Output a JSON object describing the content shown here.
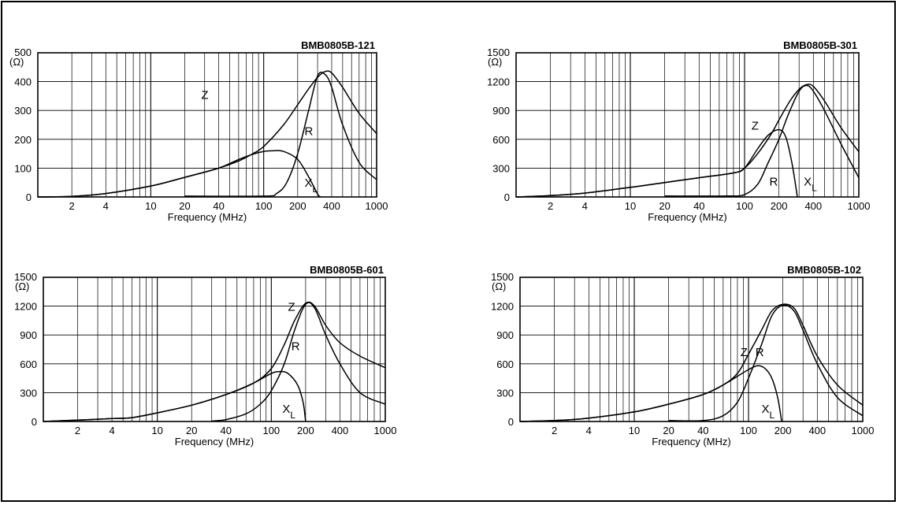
{
  "chart_data": [
    {
      "type": "line",
      "title": "BMB0805B-121",
      "xlabel": "Frequency (MHz)",
      "yunit": "(Ω)",
      "xscale": "log",
      "xlim": [
        1,
        1000
      ],
      "ylim": [
        0,
        500
      ],
      "xticks": [
        2,
        4,
        10,
        20,
        40,
        100,
        200,
        400,
        1000
      ],
      "yticks": [
        0,
        100,
        200,
        300,
        400,
        500
      ],
      "grid": true,
      "series": [
        {
          "name": "Z",
          "points": [
            [
              1,
              0
            ],
            [
              2,
              2
            ],
            [
              4,
              12
            ],
            [
              10,
              38
            ],
            [
              20,
              68
            ],
            [
              40,
              100
            ],
            [
              60,
              125
            ],
            [
              80,
              150
            ],
            [
              100,
              175
            ],
            [
              150,
              250
            ],
            [
              200,
              320
            ],
            [
              250,
              375
            ],
            [
              300,
              415
            ],
            [
              350,
              435
            ],
            [
              400,
              430
            ],
            [
              500,
              380
            ],
            [
              700,
              290
            ],
            [
              1000,
              220
            ]
          ]
        },
        {
          "name": "R",
          "points": [
            [
              20,
              3
            ],
            [
              100,
              3
            ],
            [
              130,
              12
            ],
            [
              160,
              50
            ],
            [
              200,
              150
            ],
            [
              250,
              300
            ],
            [
              300,
              420
            ],
            [
              350,
              425
            ],
            [
              400,
              380
            ],
            [
              500,
              250
            ],
            [
              700,
              120
            ],
            [
              1000,
              60
            ]
          ]
        },
        {
          "name": "XL",
          "points": [
            [
              1,
              0
            ],
            [
              2,
              2
            ],
            [
              4,
              12
            ],
            [
              10,
              38
            ],
            [
              20,
              68
            ],
            [
              40,
              100
            ],
            [
              60,
              130
            ],
            [
              80,
              148
            ],
            [
              100,
              158
            ],
            [
              120,
              160
            ],
            [
              150,
              158
            ],
            [
              200,
              130
            ],
            [
              250,
              70
            ],
            [
              300,
              10
            ],
            [
              320,
              0
            ]
          ]
        }
      ],
      "labels": {
        "Z": "Z",
        "R": "R",
        "XL": "X",
        "XL_sub": "L"
      }
    },
    {
      "type": "line",
      "title": "BMB0805B-301",
      "xlabel": "Frequency (MHz)",
      "yunit": "(Ω)",
      "xscale": "log",
      "xlim": [
        1,
        1000
      ],
      "ylim": [
        0,
        1500
      ],
      "xticks": [
        2,
        4,
        10,
        20,
        40,
        100,
        200,
        400,
        1000
      ],
      "yticks": [
        0,
        300,
        600,
        900,
        1200,
        1500
      ],
      "grid": true,
      "series": [
        {
          "name": "Z",
          "points": [
            [
              1,
              0
            ],
            [
              2,
              15
            ],
            [
              4,
              40
            ],
            [
              10,
              100
            ],
            [
              20,
              150
            ],
            [
              40,
              200
            ],
            [
              80,
              250
            ],
            [
              100,
              300
            ],
            [
              130,
              450
            ],
            [
              170,
              650
            ],
            [
              200,
              800
            ],
            [
              250,
              1000
            ],
            [
              300,
              1120
            ],
            [
              350,
              1170
            ],
            [
              400,
              1150
            ],
            [
              500,
              1000
            ],
            [
              700,
              720
            ],
            [
              1000,
              470
            ]
          ]
        },
        {
          "name": "R",
          "points": [
            [
              20,
              10
            ],
            [
              70,
              10
            ],
            [
              100,
              25
            ],
            [
              130,
              130
            ],
            [
              160,
              350
            ],
            [
              200,
              600
            ],
            [
              240,
              850
            ],
            [
              300,
              1100
            ],
            [
              350,
              1160
            ],
            [
              400,
              1100
            ],
            [
              500,
              900
            ],
            [
              700,
              550
            ],
            [
              1000,
              200
            ]
          ]
        },
        {
          "name": "XL",
          "points": [
            [
              1,
              0
            ],
            [
              2,
              15
            ],
            [
              4,
              40
            ],
            [
              10,
              100
            ],
            [
              20,
              150
            ],
            [
              40,
              200
            ],
            [
              80,
              250
            ],
            [
              100,
              300
            ],
            [
              130,
              500
            ],
            [
              160,
              640
            ],
            [
              200,
              700
            ],
            [
              230,
              620
            ],
            [
              260,
              350
            ],
            [
              290,
              0
            ]
          ]
        }
      ],
      "labels": {
        "Z": "Z",
        "R": "R",
        "XL": "X",
        "XL_sub": "L"
      }
    },
    {
      "type": "line",
      "title": "BMB0805B-601",
      "xlabel": "Frequency (MHz)",
      "yunit": "(Ω)",
      "xscale": "log",
      "xlim": [
        1,
        1000
      ],
      "ylim": [
        0,
        1500
      ],
      "xticks": [
        2,
        4,
        10,
        20,
        40,
        100,
        200,
        400,
        1000
      ],
      "yticks": [
        0,
        300,
        600,
        900,
        1200,
        1500
      ],
      "grid": true,
      "series": [
        {
          "name": "Z",
          "points": [
            [
              1,
              0
            ],
            [
              2,
              15
            ],
            [
              4,
              30
            ],
            [
              6,
              40
            ],
            [
              10,
              90
            ],
            [
              20,
              170
            ],
            [
              40,
              280
            ],
            [
              70,
              400
            ],
            [
              100,
              550
            ],
            [
              130,
              800
            ],
            [
              160,
              1050
            ],
            [
              200,
              1230
            ],
            [
              240,
              1200
            ],
            [
              300,
              1000
            ],
            [
              400,
              820
            ],
            [
              600,
              680
            ],
            [
              1000,
              560
            ]
          ]
        },
        {
          "name": "R",
          "points": [
            [
              30,
              5
            ],
            [
              40,
              20
            ],
            [
              60,
              80
            ],
            [
              80,
              180
            ],
            [
              100,
              320
            ],
            [
              130,
              600
            ],
            [
              160,
              950
            ],
            [
              200,
              1220
            ],
            [
              240,
              1180
            ],
            [
              300,
              900
            ],
            [
              400,
              600
            ],
            [
              600,
              300
            ],
            [
              1000,
              180
            ]
          ]
        },
        {
          "name": "XL",
          "points": [
            [
              1,
              0
            ],
            [
              2,
              15
            ],
            [
              4,
              30
            ],
            [
              6,
              40
            ],
            [
              10,
              90
            ],
            [
              20,
              170
            ],
            [
              40,
              280
            ],
            [
              70,
              400
            ],
            [
              100,
              500
            ],
            [
              120,
              520
            ],
            [
              140,
              500
            ],
            [
              170,
              380
            ],
            [
              190,
              200
            ],
            [
              200,
              0
            ]
          ]
        }
      ],
      "labels": {
        "Z": "Z",
        "R": "R",
        "XL": "X",
        "XL_sub": "L"
      }
    },
    {
      "type": "line",
      "title": "BMB0805B-102",
      "xlabel": "Frequency (MHz)",
      "yunit": "(Ω)",
      "xscale": "log",
      "xlim": [
        1,
        1000
      ],
      "ylim": [
        0,
        1500
      ],
      "xticks": [
        2,
        4,
        10,
        20,
        40,
        100,
        200,
        400,
        1000
      ],
      "yticks": [
        0,
        300,
        600,
        900,
        1200,
        1500
      ],
      "grid": true,
      "series": [
        {
          "name": "Z",
          "points": [
            [
              1,
              0
            ],
            [
              2,
              10
            ],
            [
              4,
              35
            ],
            [
              10,
              100
            ],
            [
              20,
              180
            ],
            [
              40,
              280
            ],
            [
              60,
              380
            ],
            [
              80,
              500
            ],
            [
              100,
              700
            ],
            [
              130,
              950
            ],
            [
              160,
              1150
            ],
            [
              200,
              1220
            ],
            [
              250,
              1180
            ],
            [
              300,
              1000
            ],
            [
              400,
              680
            ],
            [
              600,
              380
            ],
            [
              1000,
              170
            ]
          ]
        },
        {
          "name": "R",
          "points": [
            [
              20,
              10
            ],
            [
              40,
              10
            ],
            [
              60,
              60
            ],
            [
              80,
              200
            ],
            [
              100,
              450
            ],
            [
              130,
              800
            ],
            [
              160,
              1100
            ],
            [
              200,
              1210
            ],
            [
              250,
              1150
            ],
            [
              300,
              950
            ],
            [
              400,
              600
            ],
            [
              600,
              250
            ],
            [
              1000,
              60
            ]
          ]
        },
        {
          "name": "XL",
          "points": [
            [
              1,
              0
            ],
            [
              2,
              10
            ],
            [
              4,
              35
            ],
            [
              10,
              100
            ],
            [
              20,
              180
            ],
            [
              40,
              280
            ],
            [
              60,
              380
            ],
            [
              80,
              470
            ],
            [
              100,
              540
            ],
            [
              120,
              580
            ],
            [
              140,
              550
            ],
            [
              160,
              450
            ],
            [
              180,
              250
            ],
            [
              195,
              0
            ]
          ]
        }
      ],
      "labels": {
        "Z": "Z",
        "R": "R",
        "XL": "X",
        "XL_sub": "L"
      }
    }
  ]
}
